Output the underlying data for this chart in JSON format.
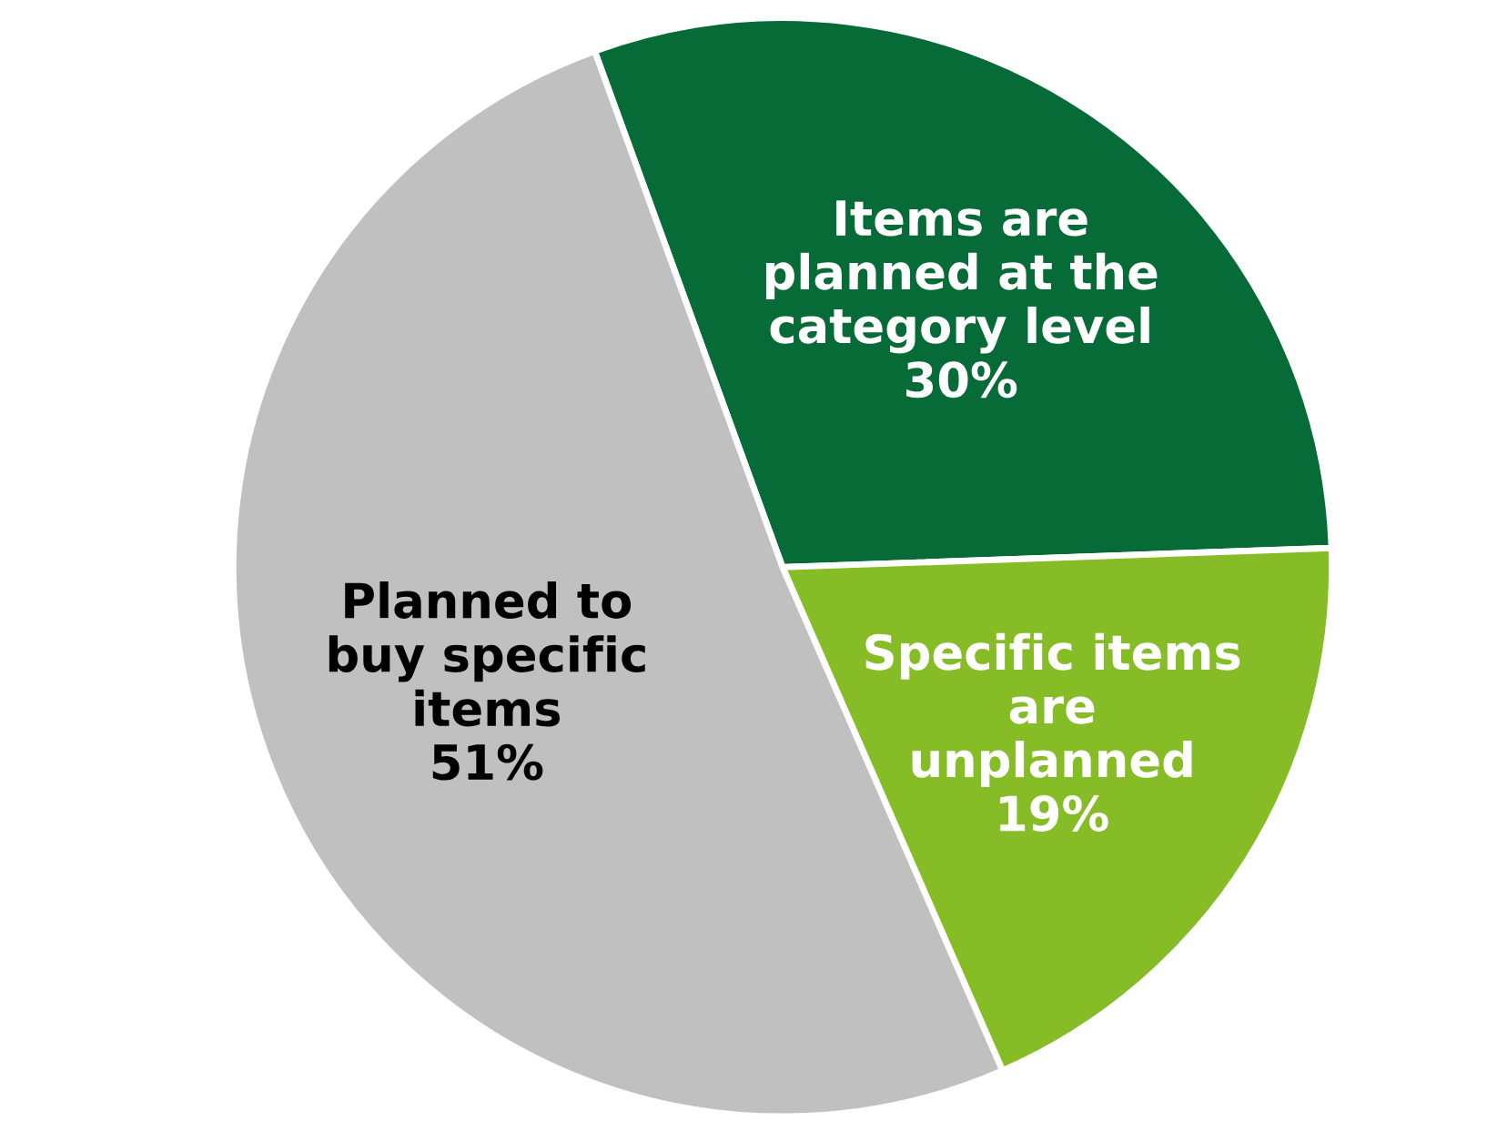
{
  "chart_data": {
    "type": "pie",
    "categories": [
      "Items are\nplanned at the\ncategory level",
      "Specific items\nare\nunplanned",
      "Planned to\nbuy specific\nitems"
    ],
    "values": [
      30,
      19,
      51
    ],
    "value_labels": [
      "30%",
      "19%",
      "51%"
    ],
    "colors": [
      "#066b37",
      "#86bc25",
      "#c0c0c0"
    ]
  }
}
